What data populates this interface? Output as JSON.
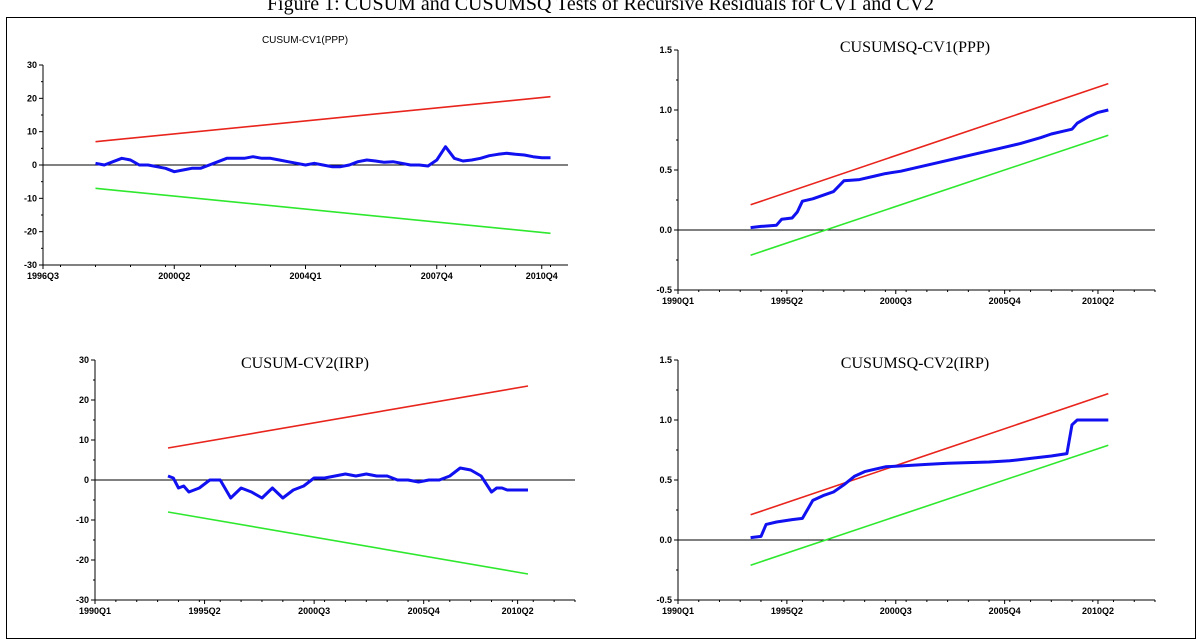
{
  "caption": "Figure 1: CUSUM and CUSUMSQ Tests of Recursive Residuals for CV1 and CV2",
  "colors": {
    "upper": "#e8241c",
    "lower": "#2ee82e",
    "stat": "#1010f0",
    "axis": "#000000"
  },
  "chart_data": [
    {
      "type": "line",
      "title": "CUSUM-CV1(PPP)",
      "title_style": "sans",
      "xlim": [
        1996.5,
        2011.5
      ],
      "ylim": [
        -30,
        30
      ],
      "yticks": [
        -30,
        -20,
        -10,
        0,
        10,
        20,
        30
      ],
      "yticklabels": [
        "-30",
        "-20",
        "-10",
        "0",
        "10",
        "20",
        "30"
      ],
      "xticks": [
        1996.5,
        2000.25,
        2004.0,
        2007.75,
        2010.75
      ],
      "xticklabels": [
        "1996Q3",
        "2000Q2",
        "2004Q1",
        "2007Q4",
        "2010Q4"
      ],
      "series": [
        {
          "role": "upper",
          "x": [
            1998.0,
            2011.0
          ],
          "y": [
            7,
            20.5
          ]
        },
        {
          "role": "lower",
          "x": [
            1998.0,
            2011.0
          ],
          "y": [
            -7,
            -20.5
          ]
        },
        {
          "role": "stat",
          "x": [
            1998.0,
            1998.25,
            1998.5,
            1998.75,
            1999.0,
            1999.25,
            1999.5,
            1999.75,
            2000.0,
            2000.25,
            2000.5,
            2000.75,
            2001.0,
            2001.25,
            2001.5,
            2001.75,
            2002.0,
            2002.25,
            2002.5,
            2002.75,
            2003.0,
            2003.25,
            2003.5,
            2003.75,
            2004.0,
            2004.25,
            2004.5,
            2004.75,
            2005.0,
            2005.25,
            2005.5,
            2005.75,
            2006.0,
            2006.25,
            2006.5,
            2006.75,
            2007.0,
            2007.25,
            2007.5,
            2007.75,
            2008.0,
            2008.25,
            2008.5,
            2008.75,
            2009.0,
            2009.25,
            2009.5,
            2009.75,
            2010.0,
            2010.25,
            2010.5,
            2010.75,
            2011.0
          ],
          "y": [
            0.5,
            0,
            1,
            2,
            1.5,
            0,
            0,
            -0.5,
            -1,
            -2,
            -1.5,
            -1,
            -1,
            0,
            1,
            2,
            2,
            2,
            2.5,
            2,
            2,
            1.5,
            1,
            0.5,
            0,
            0.5,
            0,
            -0.5,
            -0.5,
            0,
            1,
            1.5,
            1.2,
            0.8,
            1,
            0.5,
            0,
            0,
            -0.3,
            1.5,
            5.5,
            2,
            1.2,
            1.5,
            2,
            2.8,
            3.2,
            3.5,
            3.2,
            3,
            2.5,
            2.2,
            2.2
          ]
        }
      ]
    },
    {
      "type": "line",
      "title": "CUSUMSQ-CV1(PPP)",
      "title_style": "serif",
      "xlim": [
        1990.0,
        2013.0
      ],
      "ylim": [
        -0.5,
        1.5
      ],
      "yticks": [
        -0.5,
        0,
        0.5,
        1,
        1.5
      ],
      "yticklabels": [
        "-0.5",
        "0.0",
        "0.5",
        "1.0",
        "1.5"
      ],
      "xticks": [
        1990.0,
        1995.25,
        2000.5,
        2005.75,
        2010.25
      ],
      "xticklabels": [
        "1990Q1",
        "1995Q2",
        "2000Q3",
        "2005Q4",
        "2010Q2"
      ],
      "series": [
        {
          "role": "upper",
          "x": [
            1993.5,
            2010.75
          ],
          "y": [
            0.21,
            1.22
          ]
        },
        {
          "role": "lower",
          "x": [
            1993.5,
            2010.75
          ],
          "y": [
            -0.21,
            0.79
          ]
        },
        {
          "role": "stat",
          "x": [
            1993.5,
            1994.0,
            1994.75,
            1995.0,
            1995.5,
            1995.75,
            1996.0,
            1996.5,
            1997.0,
            1997.5,
            1998.0,
            1998.75,
            1999.5,
            2000.0,
            2000.75,
            2001.5,
            2002.5,
            2003.5,
            2004.5,
            2005.5,
            2006.5,
            2007.5,
            2008.0,
            2008.5,
            2009.0,
            2009.25,
            2009.75,
            2010.25,
            2010.75
          ],
          "y": [
            0.02,
            0.03,
            0.04,
            0.09,
            0.1,
            0.15,
            0.24,
            0.26,
            0.29,
            0.32,
            0.41,
            0.42,
            0.45,
            0.47,
            0.49,
            0.52,
            0.56,
            0.6,
            0.64,
            0.68,
            0.72,
            0.77,
            0.8,
            0.82,
            0.84,
            0.89,
            0.94,
            0.98,
            1.0
          ]
        }
      ]
    },
    {
      "type": "line",
      "title": "CUSUM-CV2(IRP)",
      "title_style": "serif",
      "xlim": [
        1990.0,
        2013.0
      ],
      "ylim": [
        -30,
        30
      ],
      "yticks": [
        -30,
        -20,
        -10,
        0,
        10,
        20,
        30
      ],
      "yticklabels": [
        "-30",
        "-20",
        "-10",
        "0",
        "10",
        "20",
        "30"
      ],
      "xticks": [
        1990.0,
        1995.25,
        2000.5,
        2005.75,
        2010.25
      ],
      "xticklabels": [
        "1990Q1",
        "1995Q2",
        "2000Q3",
        "2005Q4",
        "2010Q2"
      ],
      "series": [
        {
          "role": "upper",
          "x": [
            1993.5,
            2010.75
          ],
          "y": [
            8,
            23.5
          ]
        },
        {
          "role": "lower",
          "x": [
            1993.5,
            2010.75
          ],
          "y": [
            -8,
            -23.5
          ]
        },
        {
          "role": "stat",
          "x": [
            1993.5,
            1993.75,
            1994.0,
            1994.25,
            1994.5,
            1994.75,
            1995.0,
            1995.5,
            1996.0,
            1996.5,
            1997.0,
            1997.5,
            1998.0,
            1998.5,
            1999.0,
            1999.5,
            2000.0,
            2000.5,
            2001.0,
            2001.5,
            2002.0,
            2002.5,
            2003.0,
            2003.5,
            2004.0,
            2004.5,
            2005.0,
            2005.5,
            2006.0,
            2006.5,
            2007.0,
            2007.5,
            2008.0,
            2008.5,
            2009.0,
            2009.25,
            2009.5,
            2009.75,
            2010.0,
            2010.5,
            2010.75
          ],
          "y": [
            1,
            0.5,
            -2,
            -1.5,
            -3,
            -2.5,
            -2,
            0,
            0,
            -4.5,
            -2,
            -3,
            -4.5,
            -2,
            -4.5,
            -2.5,
            -1.5,
            0.5,
            0.5,
            1,
            1.5,
            1,
            1.5,
            1,
            1,
            0,
            0,
            -0.5,
            0,
            0,
            1,
            3,
            2.5,
            1,
            -3,
            -2,
            -2,
            -2.5,
            -2.5,
            -2.5,
            -2.5
          ]
        }
      ]
    },
    {
      "type": "line",
      "title": "CUSUMSQ-CV2(IRP)",
      "title_style": "serif",
      "xlim": [
        1990.0,
        2013.0
      ],
      "ylim": [
        -0.5,
        1.5
      ],
      "yticks": [
        -0.5,
        0,
        0.5,
        1,
        1.5
      ],
      "yticklabels": [
        "-0.5",
        "0.0",
        "0.5",
        "1.0",
        "1.5"
      ],
      "xticks": [
        1990.0,
        1995.25,
        2000.5,
        2005.75,
        2010.25
      ],
      "xticklabels": [
        "1990Q1",
        "1995Q2",
        "2000Q3",
        "2005Q4",
        "2010Q2"
      ],
      "series": [
        {
          "role": "upper",
          "x": [
            1993.5,
            2010.75
          ],
          "y": [
            0.21,
            1.22
          ]
        },
        {
          "role": "lower",
          "x": [
            1993.5,
            2010.75
          ],
          "y": [
            -0.21,
            0.79
          ]
        },
        {
          "role": "stat",
          "x": [
            1993.5,
            1994.0,
            1994.25,
            1994.75,
            1995.5,
            1996.0,
            1996.5,
            1997.0,
            1997.5,
            1998.0,
            1998.5,
            1999.0,
            1999.5,
            2000.0,
            2001.0,
            2002.0,
            2003.0,
            2004.0,
            2005.0,
            2006.0,
            2007.0,
            2008.0,
            2008.75,
            2009.0,
            2009.25,
            2009.5,
            2010.0,
            2010.75
          ],
          "y": [
            0.02,
            0.03,
            0.13,
            0.15,
            0.17,
            0.18,
            0.33,
            0.37,
            0.4,
            0.46,
            0.53,
            0.57,
            0.59,
            0.61,
            0.62,
            0.63,
            0.64,
            0.645,
            0.65,
            0.66,
            0.68,
            0.7,
            0.72,
            0.96,
            1.0,
            1.0,
            1.0,
            1.0
          ]
        }
      ]
    }
  ]
}
